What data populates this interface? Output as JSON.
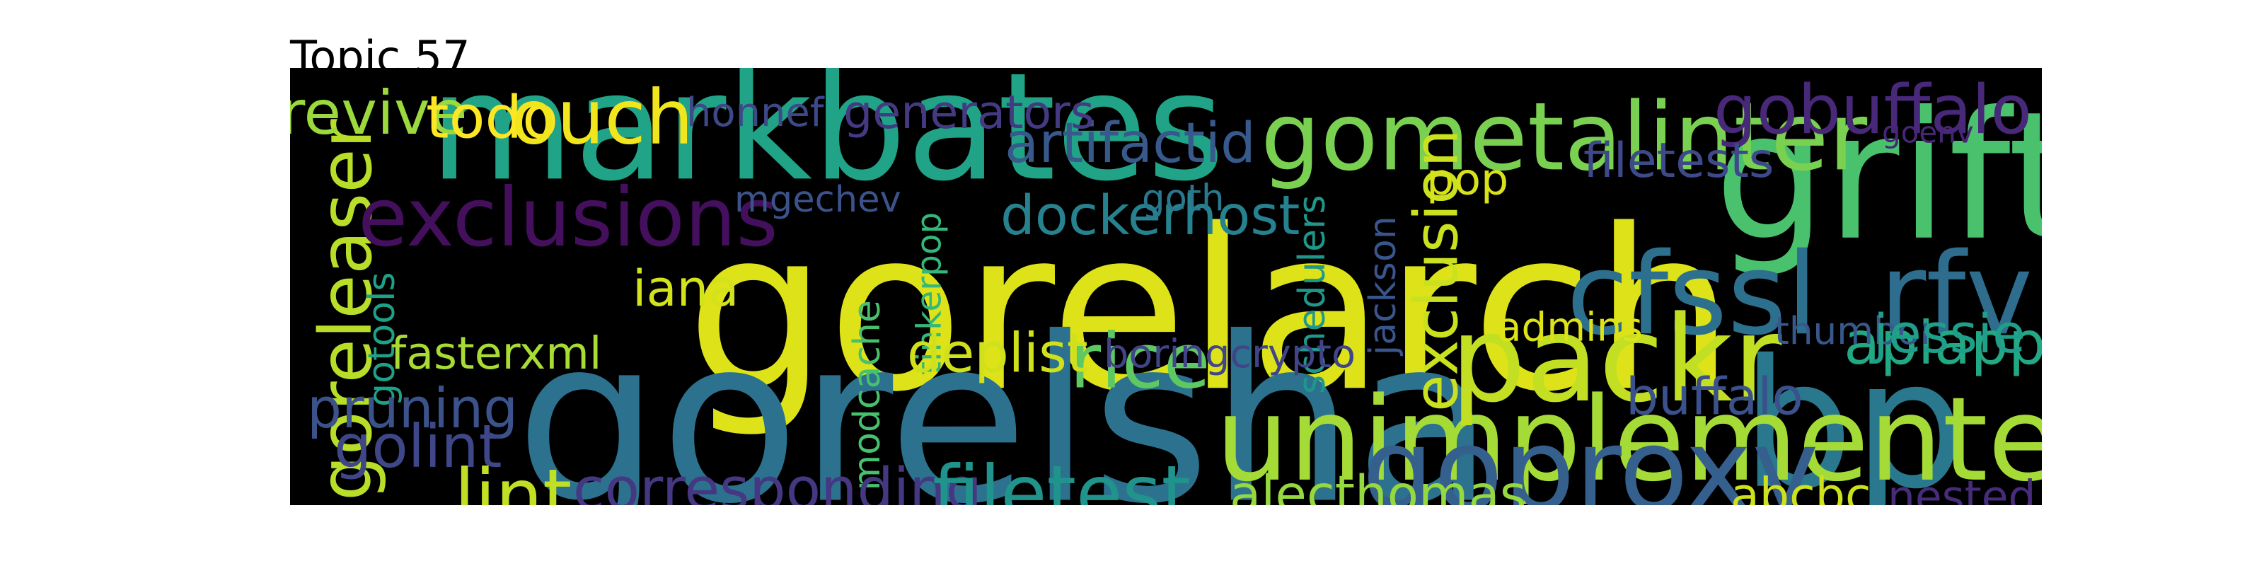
{
  "title": "Topic 57",
  "words": [
    {
      "text": "gorelarch",
      "color": "#dde318"
    },
    {
      "text": "markbates",
      "color": "#20a386"
    },
    {
      "text": "grift",
      "color": "#4ac16d"
    },
    {
      "text": "gorelsha",
      "color": "#2c728e"
    },
    {
      "text": "bp",
      "color": "#2a788e"
    },
    {
      "text": "gometalinter",
      "color": "#7ad151"
    },
    {
      "text": "unimplemented",
      "color": "#a5db36"
    },
    {
      "text": "goreleaser",
      "color": "#b8de29"
    },
    {
      "text": "cfssl",
      "color": "#2d708e"
    },
    {
      "text": "rfv",
      "color": "#2e6d8e"
    },
    {
      "text": "packr",
      "color": "#c2df23"
    },
    {
      "text": "goproxy",
      "color": "#355f8d"
    },
    {
      "text": "gobuffalo",
      "color": "#482878"
    },
    {
      "text": "exclusions",
      "color": "#440f5d"
    },
    {
      "text": "dockerhost",
      "color": "#26828e"
    },
    {
      "text": "exclusion",
      "color": "#cae11f"
    },
    {
      "text": "apiapp",
      "color": "#22a884"
    },
    {
      "text": "alecthomas",
      "color": "#95d840"
    },
    {
      "text": "rice",
      "color": "#5ec962"
    },
    {
      "text": "pop",
      "color": "#d8e219"
    },
    {
      "text": "artifactid",
      "color": "#38598c"
    },
    {
      "text": "mgechev",
      "color": "#3b528b"
    },
    {
      "text": "fasterxml",
      "color": "#a8db34"
    },
    {
      "text": "goth",
      "color": "#2a788e"
    },
    {
      "text": "schedulers",
      "color": "#1f988b"
    },
    {
      "text": "jackson",
      "color": "#39558c"
    },
    {
      "text": "filetests",
      "color": "#3e4989"
    },
    {
      "text": "goenv",
      "color": "#482677"
    },
    {
      "text": "revive",
      "color": "#9bd93c"
    },
    {
      "text": "todo",
      "color": "#fde725"
    },
    {
      "text": "ouch",
      "color": "#f1e51d"
    },
    {
      "text": "honnef",
      "color": "#3e4989"
    },
    {
      "text": "generators",
      "color": "#443a83"
    },
    {
      "text": "tinkerpop",
      "color": "#35b779"
    },
    {
      "text": "modcache",
      "color": "#48c16e"
    },
    {
      "text": "gotools",
      "color": "#1fa187"
    },
    {
      "text": "iana",
      "color": "#d2e21b"
    },
    {
      "text": "pruning",
      "color": "#3b528b"
    },
    {
      "text": "golint",
      "color": "#3f4788"
    },
    {
      "text": "lint",
      "color": "#c0df25"
    },
    {
      "text": "corresponding",
      "color": "#453781"
    },
    {
      "text": "filetest",
      "color": "#20938c"
    },
    {
      "text": "deplist",
      "color": "#d0e11c"
    },
    {
      "text": "boringcrypto",
      "color": "#414487"
    },
    {
      "text": "admins",
      "color": "#dde318"
    },
    {
      "text": "thumbor",
      "color": "#38588c"
    },
    {
      "text": "jessie",
      "color": "#1f9e89"
    },
    {
      "text": "buffalo",
      "color": "#3b518b"
    },
    {
      "text": "abcbc",
      "color": "#cde11d"
    },
    {
      "text": "nested",
      "color": "#472c7a"
    }
  ]
}
